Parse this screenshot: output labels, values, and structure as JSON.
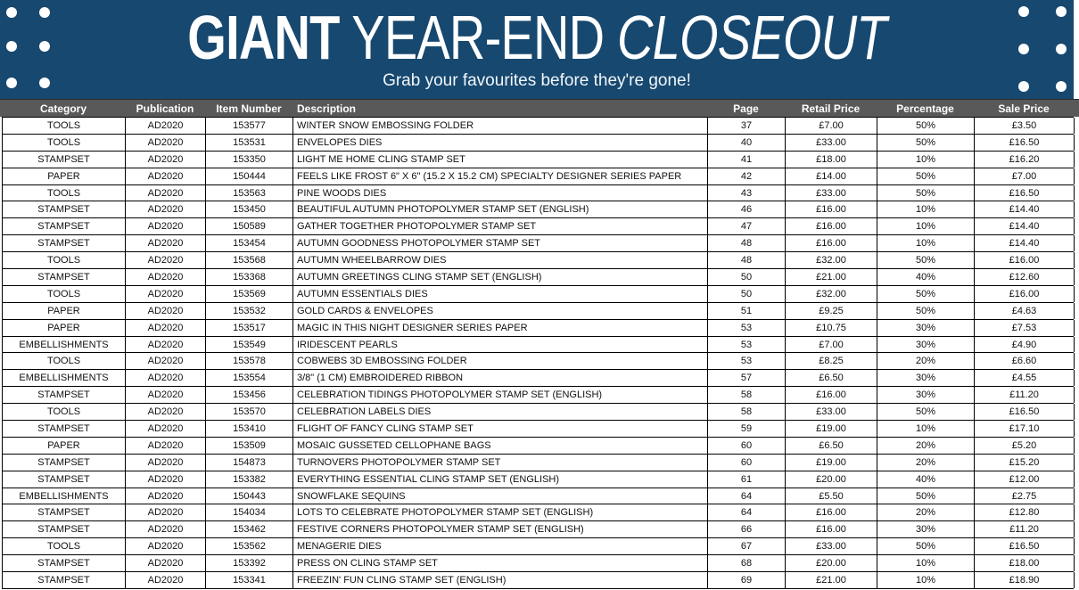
{
  "colors": {
    "banner_bg": "#17486f",
    "header_bg": "#595959",
    "banner_text": "#ffffff"
  },
  "banner": {
    "title_bold": "GIANT",
    "title_regular": "YEAR-END",
    "title_italic": "CLOSEOUT",
    "subtitle": "Grab your favourites before they're gone!"
  },
  "table": {
    "columns": [
      "Category",
      "Publication",
      "Item Number",
      "Description",
      "Page",
      "Retail Price",
      "Percentage",
      "Sale Price"
    ],
    "rows": [
      [
        "TOOLS",
        "AD2020",
        "153577",
        "WINTER SNOW EMBOSSING FOLDER",
        "37",
        "£7.00",
        "50%",
        "£3.50"
      ],
      [
        "TOOLS",
        "AD2020",
        "153531",
        "ENVELOPES DIES",
        "40",
        "£33.00",
        "50%",
        "£16.50"
      ],
      [
        "STAMPSET",
        "AD2020",
        "153350",
        "LIGHT ME HOME CLING STAMP SET",
        "41",
        "£18.00",
        "10%",
        "£16.20"
      ],
      [
        "PAPER",
        "AD2020",
        "150444",
        "FEELS LIKE FROST 6\" X 6\" (15.2 X 15.2 CM) SPECIALTY DESIGNER SERIES PAPER",
        "42",
        "£14.00",
        "50%",
        "£7.00"
      ],
      [
        "TOOLS",
        "AD2020",
        "153563",
        "PINE WOODS DIES",
        "43",
        "£33.00",
        "50%",
        "£16.50"
      ],
      [
        "STAMPSET",
        "AD2020",
        "153450",
        "BEAUTIFUL AUTUMN PHOTOPOLYMER STAMP SET (ENGLISH)",
        "46",
        "£16.00",
        "10%",
        "£14.40"
      ],
      [
        "STAMPSET",
        "AD2020",
        "150589",
        "GATHER TOGETHER PHOTOPOLYMER STAMP SET",
        "47",
        "£16.00",
        "10%",
        "£14.40"
      ],
      [
        "STAMPSET",
        "AD2020",
        "153454",
        "AUTUMN GOODNESS PHOTOPOLYMER STAMP SET",
        "48",
        "£16.00",
        "10%",
        "£14.40"
      ],
      [
        "TOOLS",
        "AD2020",
        "153568",
        "AUTUMN WHEELBARROW DIES",
        "48",
        "£32.00",
        "50%",
        "£16.00"
      ],
      [
        "STAMPSET",
        "AD2020",
        "153368",
        "AUTUMN GREETINGS CLING STAMP SET (ENGLISH)",
        "50",
        "£21.00",
        "40%",
        "£12.60"
      ],
      [
        "TOOLS",
        "AD2020",
        "153569",
        "AUTUMN ESSENTIALS DIES",
        "50",
        "£32.00",
        "50%",
        "£16.00"
      ],
      [
        "PAPER",
        "AD2020",
        "153532",
        "GOLD CARDS & ENVELOPES",
        "51",
        "£9.25",
        "50%",
        "£4.63"
      ],
      [
        "PAPER",
        "AD2020",
        "153517",
        "MAGIC IN THIS NIGHT DESIGNER SERIES PAPER",
        "53",
        "£10.75",
        "30%",
        "£7.53"
      ],
      [
        "EMBELLISHMENTS",
        "AD2020",
        "153549",
        "IRIDESCENT PEARLS",
        "53",
        "£7.00",
        "30%",
        "£4.90"
      ],
      [
        "TOOLS",
        "AD2020",
        "153578",
        "COBWEBS 3D EMBOSSING FOLDER",
        "53",
        "£8.25",
        "20%",
        "£6.60"
      ],
      [
        "EMBELLISHMENTS",
        "AD2020",
        "153554",
        "3/8\" (1 CM) EMBROIDERED RIBBON",
        "57",
        "£6.50",
        "30%",
        "£4.55"
      ],
      [
        "STAMPSET",
        "AD2020",
        "153456",
        "CELEBRATION TIDINGS PHOTOPOLYMER STAMP SET (ENGLISH)",
        "58",
        "£16.00",
        "30%",
        "£11.20"
      ],
      [
        "TOOLS",
        "AD2020",
        "153570",
        "CELEBRATION LABELS DIES",
        "58",
        "£33.00",
        "50%",
        "£16.50"
      ],
      [
        "STAMPSET",
        "AD2020",
        "153410",
        "FLIGHT OF FANCY CLING STAMP SET",
        "59",
        "£19.00",
        "10%",
        "£17.10"
      ],
      [
        "PAPER",
        "AD2020",
        "153509",
        "MOSAIC GUSSETED CELLOPHANE BAGS",
        "60",
        "£6.50",
        "20%",
        "£5.20"
      ],
      [
        "STAMPSET",
        "AD2020",
        "154873",
        "TURNOVERS PHOTOPOLYMER STAMP SET",
        "60",
        "£19.00",
        "20%",
        "£15.20"
      ],
      [
        "STAMPSET",
        "AD2020",
        "153382",
        "EVERYTHING ESSENTIAL CLING STAMP SET (ENGLISH)",
        "61",
        "£20.00",
        "40%",
        "£12.00"
      ],
      [
        "EMBELLISHMENTS",
        "AD2020",
        "150443",
        "SNOWFLAKE SEQUINS",
        "64",
        "£5.50",
        "50%",
        "£2.75"
      ],
      [
        "STAMPSET",
        "AD2020",
        "154034",
        "LOTS TO CELEBRATE PHOTOPOLYMER STAMP SET (ENGLISH)",
        "64",
        "£16.00",
        "20%",
        "£12.80"
      ],
      [
        "STAMPSET",
        "AD2020",
        "153462",
        "FESTIVE CORNERS PHOTOPOLYMER STAMP SET (ENGLISH)",
        "66",
        "£16.00",
        "30%",
        "£11.20"
      ],
      [
        "TOOLS",
        "AD2020",
        "153562",
        "MENAGERIE DIES",
        "67",
        "£33.00",
        "50%",
        "£16.50"
      ],
      [
        "STAMPSET",
        "AD2020",
        "153392",
        "PRESS ON CLING STAMP SET",
        "68",
        "£20.00",
        "10%",
        "£18.00"
      ],
      [
        "STAMPSET",
        "AD2020",
        "153341",
        "FREEZIN' FUN CLING STAMP SET (ENGLISH)",
        "69",
        "£21.00",
        "10%",
        "£18.90"
      ]
    ]
  }
}
